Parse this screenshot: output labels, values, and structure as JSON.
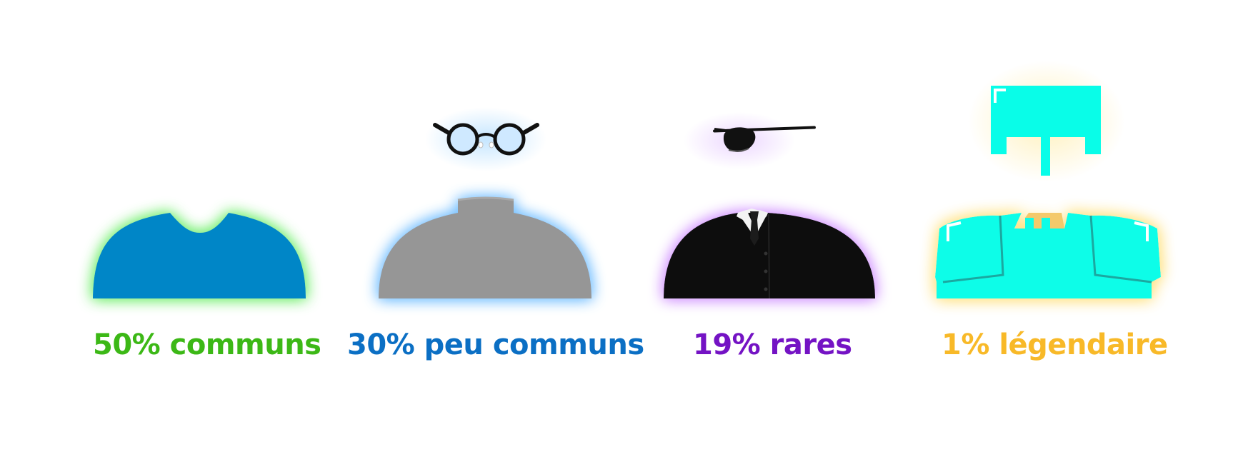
{
  "tiers": [
    {
      "label": "50% communs",
      "percent": 50,
      "color": "#3cb816",
      "glow": "#7ef07a",
      "outfit_color": "#0186c7",
      "outfit": "t-shirt",
      "accessory": null
    },
    {
      "label": "30% peu communs",
      "percent": 30,
      "color": "#0b6fc4",
      "glow": "#7cc3ff",
      "outfit_color": "#969696",
      "outfit": "turtleneck",
      "accessory": "round-glasses"
    },
    {
      "label": "19% rares",
      "percent": 19,
      "color": "#7413c4",
      "glow": "#d69cff",
      "outfit_color": "#0a0a0a",
      "outfit": "suit-and-tie",
      "accessory": "eye-patch"
    },
    {
      "label": "1% légendaire",
      "percent": 1,
      "color": "#f8b928",
      "glow": "#ffe48a",
      "outfit_color": "#09fde8",
      "outfit": "armor",
      "accessory": "helmet"
    }
  ]
}
